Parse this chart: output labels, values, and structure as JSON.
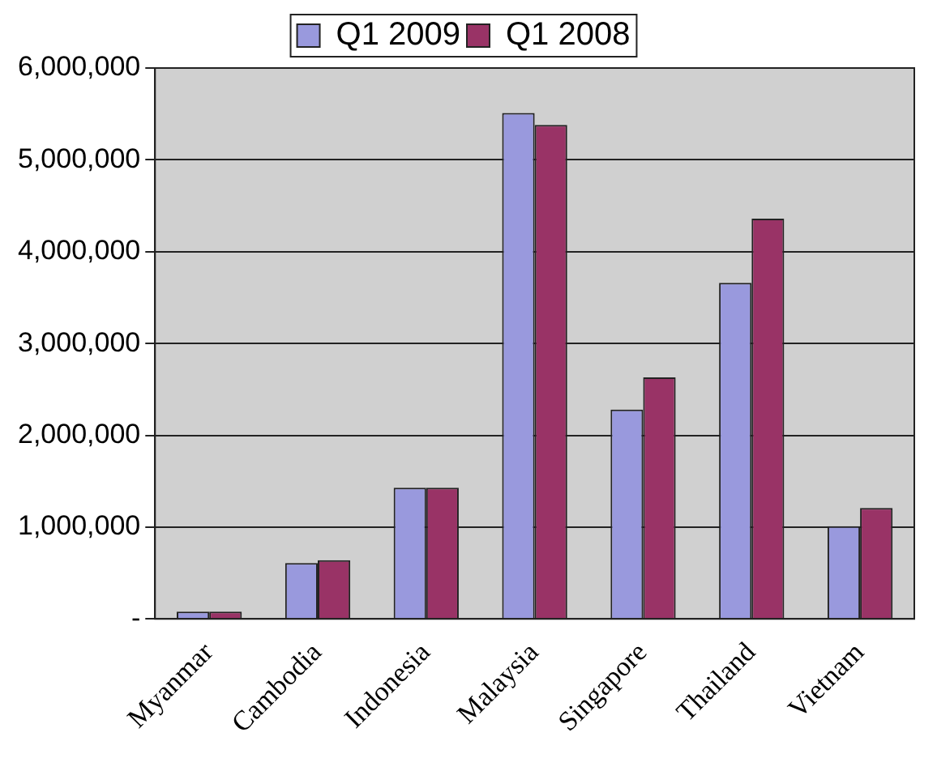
{
  "chart_data": {
    "type": "bar",
    "categories": [
      "Myanmar",
      "Cambodia",
      "Indonesia",
      "Malaysia",
      "Singapore",
      "Thailand",
      "Vietnam"
    ],
    "series": [
      {
        "name": "Q1 2009",
        "color": "#9999dd",
        "values": [
          80000,
          610000,
          1430000,
          5510000,
          2280000,
          3660000,
          1010000
        ]
      },
      {
        "name": "Q1 2008",
        "color": "#993366",
        "values": [
          80000,
          640000,
          1430000,
          5380000,
          2630000,
          4360000,
          1210000
        ]
      }
    ],
    "ylim": [
      0,
      6000000
    ],
    "yticks": [
      {
        "value": 0,
        "label": "-"
      },
      {
        "value": 1000000,
        "label": "1,000,000"
      },
      {
        "value": 2000000,
        "label": "2,000,000"
      },
      {
        "value": 3000000,
        "label": "3,000,000"
      },
      {
        "value": 4000000,
        "label": "4,000,000"
      },
      {
        "value": 5000000,
        "label": "5,000,000"
      },
      {
        "value": 6000000,
        "label": "6,000,000"
      }
    ],
    "grid": "y",
    "legend": "top"
  }
}
